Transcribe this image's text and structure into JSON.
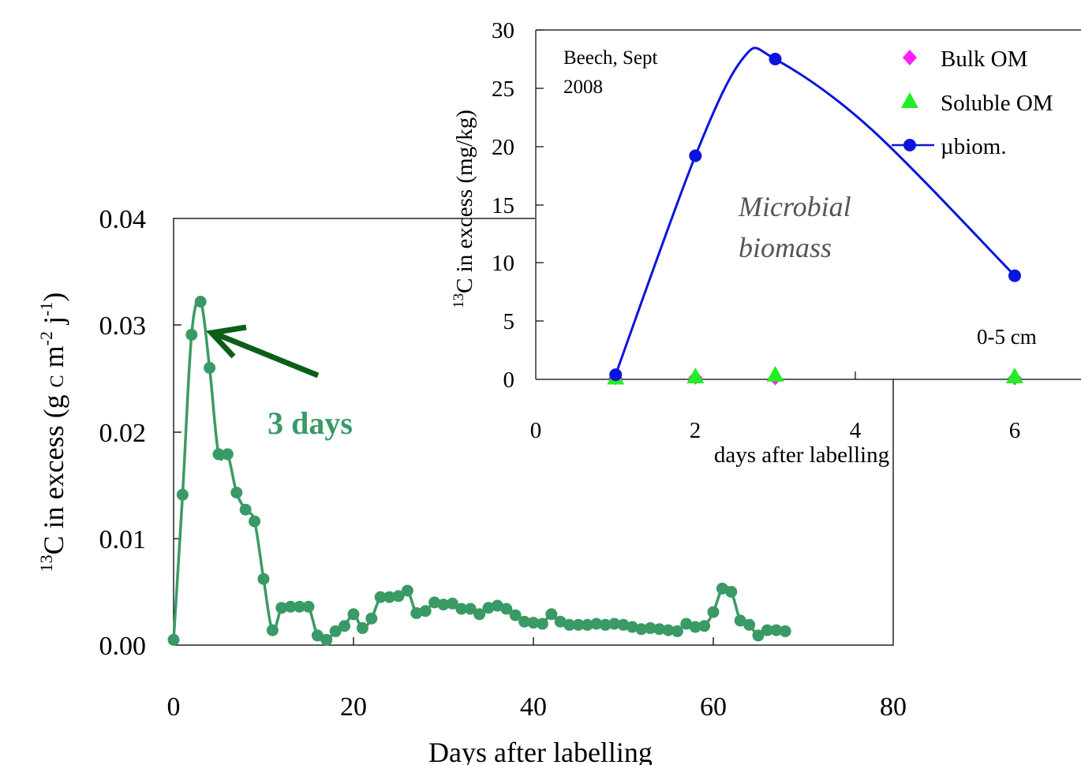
{
  "chart_data": [
    {
      "type": "line",
      "id": "main",
      "xlabel": "Days after labelling",
      "ylabel_parts": {
        "sup": "13",
        "pre": "C in excess (g ",
        "c": "C",
        "m": " m",
        "exp1": "-2",
        "j": " j",
        "exp2": "-1",
        "post": ")"
      },
      "xlim": [
        0,
        80
      ],
      "ylim": [
        0,
        0.04
      ],
      "xticks": [
        "0",
        "20",
        "40",
        "60",
        "80"
      ],
      "yticks": [
        "0.00",
        "0.01",
        "0.02",
        "0.03",
        "0.04"
      ],
      "series_color": "#3a9a66",
      "annotation": {
        "text": "3 days",
        "color": "#3a9a66",
        "arrow_color": "#0b5e17",
        "points_to": [
          3,
          0.0298
        ]
      },
      "x": [
        0,
        1,
        2,
        3,
        4,
        5,
        6,
        7,
        8,
        9,
        10,
        11,
        12,
        13,
        14,
        15,
        16,
        17,
        18,
        19,
        20,
        21,
        22,
        23,
        24,
        25,
        26,
        27,
        28,
        29,
        30,
        31,
        32,
        33,
        34,
        35,
        36,
        37,
        38,
        39,
        40,
        41,
        42,
        43,
        44,
        45,
        46,
        47,
        48,
        49,
        50,
        51,
        52,
        53,
        54,
        55,
        56,
        57,
        58,
        59,
        60,
        61,
        62,
        63,
        64,
        65,
        66,
        67,
        68
      ],
      "y": [
        0.0005,
        0.0141,
        0.0291,
        0.0322,
        0.026,
        0.0179,
        0.0179,
        0.0143,
        0.0127,
        0.0116,
        0.0062,
        0.0014,
        0.0035,
        0.0036,
        0.0036,
        0.0036,
        0.0009,
        0.0005,
        0.0013,
        0.0018,
        0.0029,
        0.0016,
        0.0025,
        0.0045,
        0.0045,
        0.0046,
        0.0051,
        0.003,
        0.0032,
        0.004,
        0.0038,
        0.0039,
        0.0034,
        0.0034,
        0.0029,
        0.0035,
        0.0037,
        0.0034,
        0.0028,
        0.0022,
        0.0021,
        0.002,
        0.0029,
        0.0022,
        0.0019,
        0.0019,
        0.0019,
        0.002,
        0.0019,
        0.002,
        0.0019,
        0.0017,
        0.0015,
        0.0016,
        0.0015,
        0.0014,
        0.0013,
        0.002,
        0.0017,
        0.0018,
        0.0031,
        0.0053,
        0.005,
        0.0023,
        0.0019,
        0.0009,
        0.0014,
        0.0014,
        0.0013
      ]
    },
    {
      "type": "line",
      "id": "inset",
      "annotation_top": [
        "Beech, Sept",
        "2008"
      ],
      "annotation_mid": [
        "Microbial",
        "biomass"
      ],
      "annotation_depth": "0-5 cm",
      "xlabel": "days after labelling",
      "ylabel_parts": {
        "sup": "13",
        "pre": "C in excess (mg/kg)"
      },
      "xlim": [
        0,
        6.5
      ],
      "ylim": [
        0,
        30
      ],
      "xticks": [
        "0",
        "2",
        "4",
        "6"
      ],
      "yticks": [
        "0",
        "5",
        "10",
        "15",
        "20",
        "25",
        "30"
      ],
      "series": [
        {
          "name": "Bulk OM",
          "marker": "diamond",
          "color": "#ff22ff",
          "x": [
            1,
            2,
            3,
            6
          ],
          "y": [
            0.1,
            0.15,
            0.1,
            0.1
          ]
        },
        {
          "name": "Soluble OM",
          "marker": "triangle",
          "color": "#22ee22",
          "x": [
            1,
            2,
            3,
            6
          ],
          "y": [
            0.1,
            0.2,
            0.35,
            0.2
          ]
        },
        {
          "name": "µbiom.",
          "marker": "circle",
          "color": "#0a14dd",
          "x": [
            1,
            2,
            3,
            6
          ],
          "y": [
            0.4,
            19.2,
            27.5,
            8.9
          ]
        }
      ]
    }
  ]
}
